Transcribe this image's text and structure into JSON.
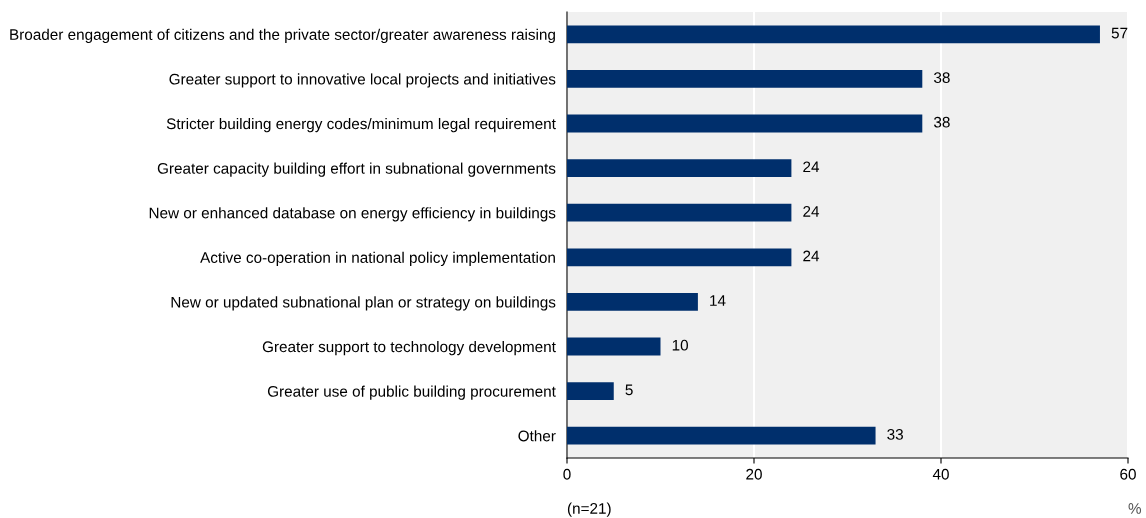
{
  "chart_data": {
    "type": "bar",
    "orientation": "horizontal",
    "categories": [
      "Broader engagement of citizens and the private sector/greater awareness raising",
      "Greater support to innovative local projects and initiatives",
      "Stricter building energy codes/minimum legal requirement",
      "Greater capacity building effort in subnational governments",
      "New or enhanced database on energy efficiency in buildings",
      "Active co-operation in national policy implementation",
      "New or updated subnational plan or strategy on buildings",
      "Greater support to technology development",
      "Greater use of public building procurement",
      "Other"
    ],
    "values": [
      57,
      38,
      38,
      24,
      24,
      24,
      14,
      10,
      5,
      33
    ],
    "color": "#002f6c",
    "xlim": [
      0,
      60
    ],
    "xticks": [
      0,
      20,
      40,
      60
    ],
    "xlabel": "%",
    "annotations": [
      "(n=21)"
    ],
    "data_labels": true,
    "grid": "x"
  }
}
